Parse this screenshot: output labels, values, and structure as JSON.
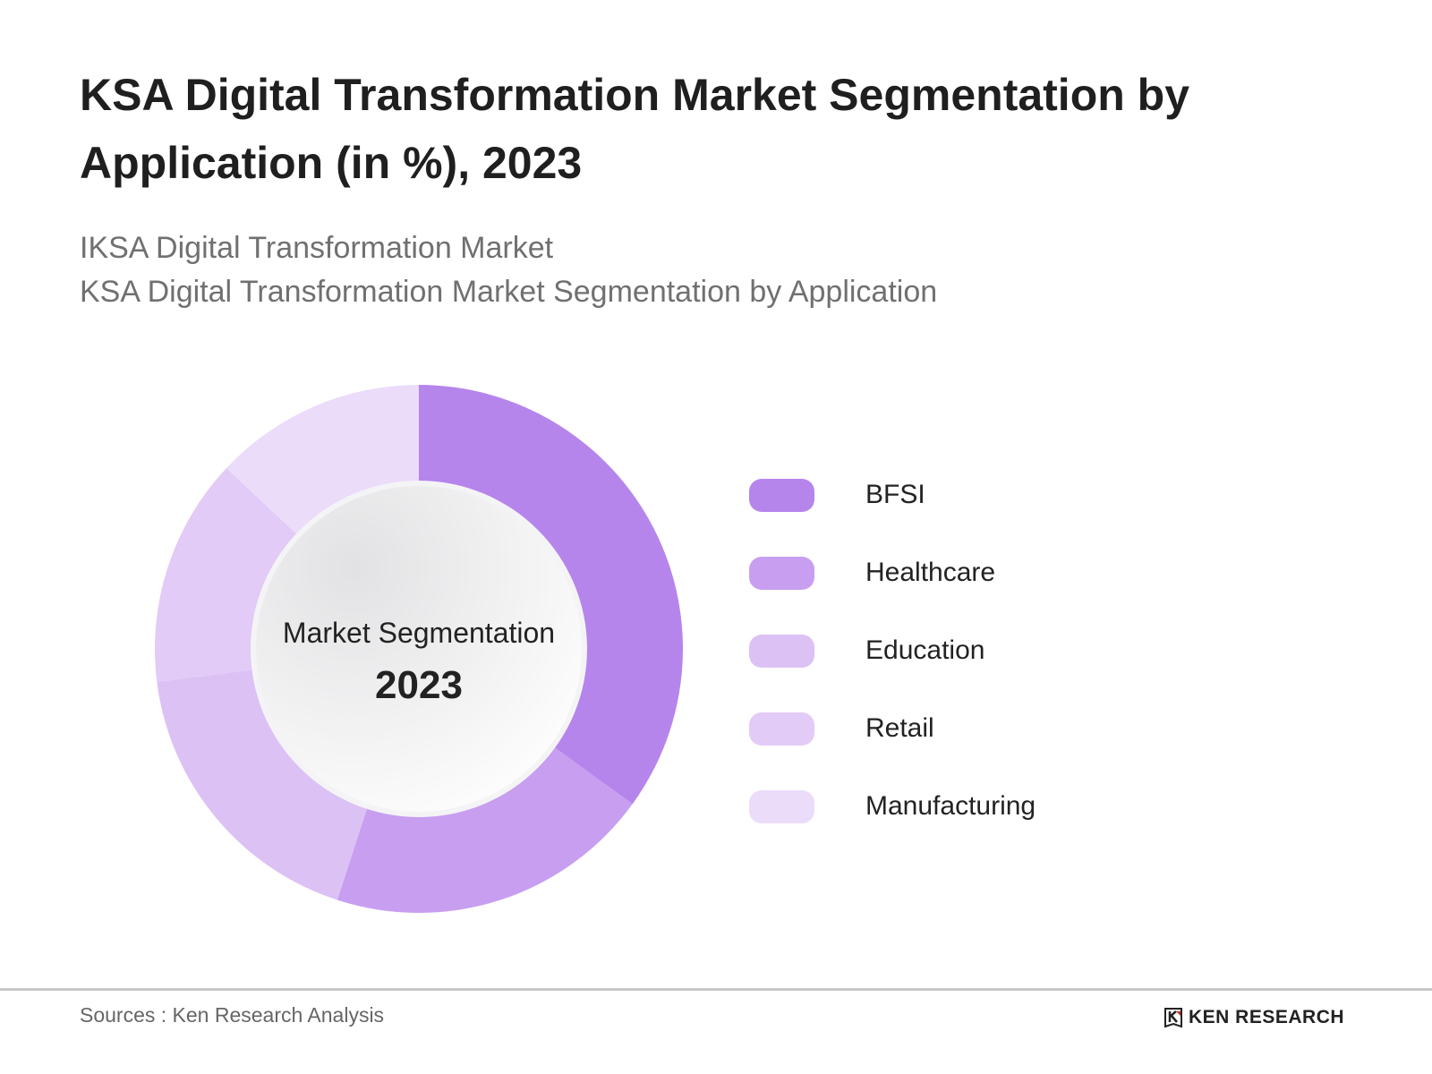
{
  "title": "KSA Digital Transformation Market Segmentation by Application (in %), 2023",
  "subtitle_lines": [
    "IKSA Digital Transformation Market",
    "KSA Digital Transformation Market Segmentation by Application"
  ],
  "chart_data": {
    "type": "pie",
    "variant": "donut",
    "center_label": "Market Segmentation",
    "center_value": "2023",
    "categories": [
      "BFSI",
      "Healthcare",
      "Education",
      "Retail",
      "Manufacturing"
    ],
    "values": [
      35,
      20,
      18,
      14,
      13
    ],
    "colors": [
      "#b585ec",
      "#c89ef0",
      "#dcc1f5",
      "#e2cbf6",
      "#ebdcfa"
    ],
    "legend_placement": "right",
    "start_angle": "top, clockwise"
  },
  "footer": {
    "source": "Sources : Ken Research Analysis",
    "logo_text": "KEN RESEARCH"
  }
}
